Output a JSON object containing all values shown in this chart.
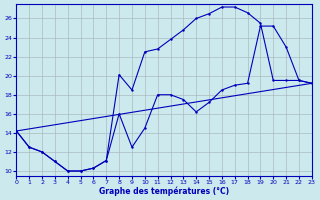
{
  "xlabel": "Graphe des températures (°C)",
  "xlim": [
    0,
    23
  ],
  "ylim": [
    9.5,
    27.5
  ],
  "yticks": [
    10,
    12,
    14,
    16,
    18,
    20,
    22,
    24,
    26
  ],
  "xticks": [
    0,
    1,
    2,
    3,
    4,
    5,
    6,
    7,
    8,
    9,
    10,
    11,
    12,
    13,
    14,
    15,
    16,
    17,
    18,
    19,
    20,
    21,
    22,
    23
  ],
  "bg_color": "#cce9ed",
  "line_color": "#0000bb",
  "grid_color": "#aabbc0",
  "curve1_x": [
    0,
    1,
    2,
    3,
    4,
    5,
    6,
    7,
    8,
    9,
    10,
    11,
    12,
    13,
    14,
    15,
    16,
    17,
    18,
    19,
    20,
    21,
    22,
    23
  ],
  "curve1_y": [
    14.2,
    12.5,
    12.0,
    11.0,
    10.0,
    10.0,
    10.3,
    11.1,
    20.1,
    18.5,
    22.5,
    22.8,
    23.8,
    24.8,
    26.0,
    26.5,
    27.2,
    27.2,
    26.6,
    25.5,
    19.5,
    19.5,
    19.5,
    19.2
  ],
  "curve2_x": [
    0,
    1,
    2,
    3,
    4,
    5,
    6,
    7,
    8,
    9,
    10,
    11,
    12,
    13,
    14,
    15,
    16,
    17,
    18,
    19,
    20,
    21,
    22,
    23
  ],
  "curve2_y": [
    14.2,
    12.5,
    12.0,
    11.0,
    10.0,
    10.0,
    10.3,
    11.1,
    16.0,
    12.5,
    14.5,
    18.0,
    18.0,
    17.5,
    16.2,
    17.2,
    18.5,
    19.0,
    19.2,
    25.2,
    25.2,
    23.0,
    19.5,
    19.2
  ],
  "curve3_x": [
    0,
    23
  ],
  "curve3_y": [
    14.2,
    19.2
  ]
}
